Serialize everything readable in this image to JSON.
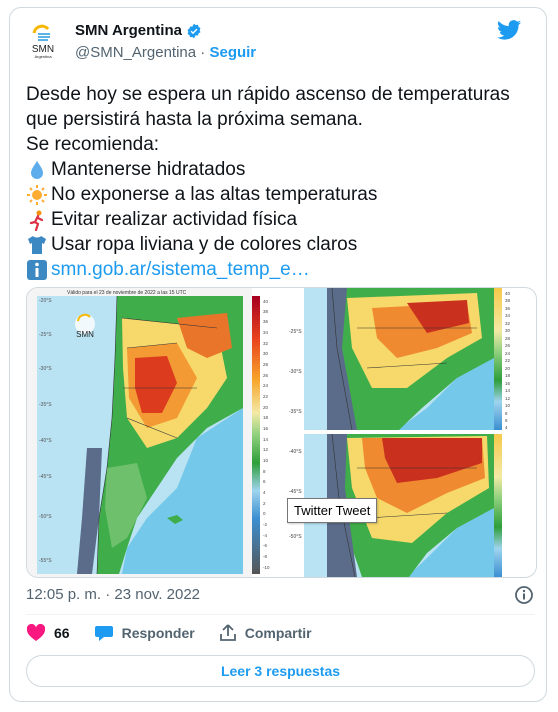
{
  "colors": {
    "accent": "#1d9bf0",
    "like": "#f91880",
    "muted": "#536471",
    "text": "#0f1419"
  },
  "author": {
    "name": "SMN Argentina",
    "handle": "@SMN_Argentina",
    "separator": "·",
    "follow_label": "Seguir",
    "avatar_text": "SMN",
    "avatar_subtext": "Argentina"
  },
  "tweet": {
    "line1": "Desde hoy se espera un rápido ascenso de temperaturas",
    "line2": "que persistirá hasta la próxima semana.",
    "line3": "Se recomienda:",
    "items": [
      {
        "icon": "water-drop-icon",
        "text": "Mantenerse hidratados"
      },
      {
        "icon": "sun-icon",
        "text": "No exponerse a las altas temperaturas"
      },
      {
        "icon": "runner-icon",
        "text": "Evitar realizar actividad física"
      },
      {
        "icon": "tshirt-icon",
        "text": "Usar ropa liviana y de colores claros"
      },
      {
        "icon": "info-icon",
        "text": "smn.gob.ar/sistema_temp_e…"
      }
    ]
  },
  "media": {
    "header_text": "Válido para el 23 de noviembre de 2022 a las 15 UTC",
    "logo_text": "SMN",
    "tooltip": "Twitter Tweet",
    "scale_left": [
      "40",
      "38",
      "36",
      "34",
      "32",
      "30",
      "28",
      "26",
      "24",
      "22",
      "20",
      "18",
      "16",
      "14",
      "12",
      "10",
      "8",
      "6",
      "4",
      "2",
      "0",
      "-2",
      "-4",
      "-6",
      "-8",
      "-10"
    ],
    "scale_right": [
      "40",
      "38",
      "36",
      "34",
      "32",
      "30",
      "28",
      "26",
      "24",
      "22",
      "20",
      "18",
      "16",
      "14",
      "12",
      "10",
      "8",
      "6",
      "4"
    ],
    "lat_left": [
      "-20°S",
      "-25°S",
      "-30°S",
      "-35°S",
      "-40°S",
      "-45°S",
      "-50°S",
      "-55°S"
    ],
    "lat_mid": [
      "-25°S",
      "-30°S",
      "-35°S",
      "-40°S",
      "-45°S",
      "-50°S"
    ]
  },
  "meta": {
    "time": "12:05 p. m.",
    "separator": "·",
    "date": "23 nov. 2022"
  },
  "actions": {
    "likes": "66",
    "reply": "Responder",
    "share": "Compartir"
  },
  "read_replies": "Leer 3 respuestas"
}
